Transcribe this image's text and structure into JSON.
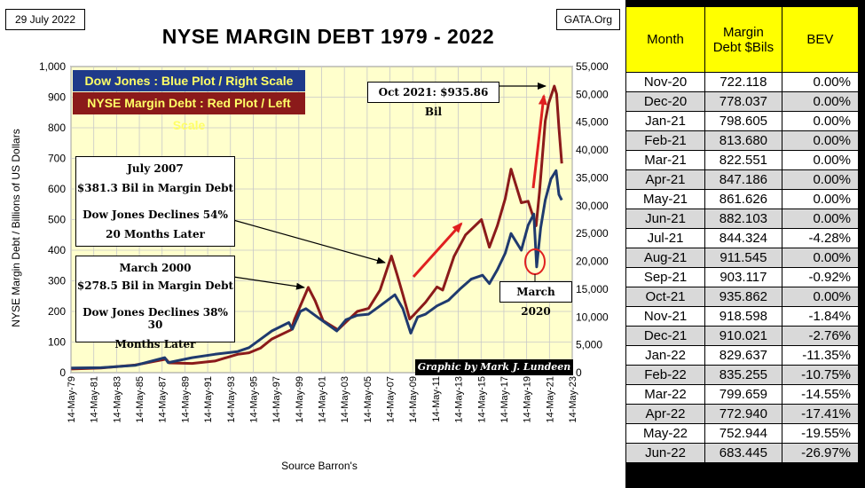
{
  "header": {
    "date": "29 July 2022",
    "site": "GATA.Org",
    "title": "NYSE MARGIN DEBT 1979 - 2022"
  },
  "legend": {
    "blue": "Dow Jones : Blue Plot / Right Scale",
    "red": "NYSE Margin Debt : Red Plot / Left Scale"
  },
  "annotations": {
    "july2007": [
      "July 2007",
      "$381.3  Bil in Margin Debt",
      "Dow Jones Declines 54%",
      "20 Months Later"
    ],
    "march2000": [
      "March  2000",
      "$278.5  Bil in Margin Debt",
      "Dow Jones Declines 38% 30",
      "Months Later"
    ],
    "peak": "Oct 2021:  $935.86  Bil",
    "march2020": "March  2020"
  },
  "credit": "Graphic by Mark J. Lundeen",
  "source": "Source Barron's",
  "colors": {
    "dow": "#1f3a6e",
    "margin": "#8b1a1a",
    "plot_bg": "#ffffcc",
    "header_bg": "#ffff00",
    "arrow": "#e02020"
  },
  "chart_data": {
    "type": "line",
    "title": "NYSE MARGIN DEBT 1979 - 2022",
    "ylabel_left": "NYSE Margin Debt  /  Billions of US Dollars",
    "ylim_left": [
      0,
      1000
    ],
    "ylim_right": [
      0,
      55000
    ],
    "yticks_left": [
      "0",
      "100",
      "200",
      "300",
      "400",
      "500",
      "600",
      "700",
      "800",
      "900",
      "1,000"
    ],
    "yticks_right": [
      "0",
      "5,000",
      "10,000",
      "15,000",
      "20,000",
      "25,000",
      "30,000",
      "35,000",
      "40,000",
      "45,000",
      "50,000",
      "55,000"
    ],
    "xticks": [
      "14-May-79",
      "14-May-81",
      "14-May-83",
      "14-May-85",
      "14-May-87",
      "14-May-89",
      "14-May-91",
      "14-May-93",
      "14-May-95",
      "14-May-97",
      "14-May-99",
      "14-May-01",
      "14-May-03",
      "14-May-05",
      "14-May-07",
      "14-May-09",
      "14-May-11",
      "14-May-13",
      "14-May-15",
      "14-May-17",
      "14-May-19",
      "14-May-21",
      "14-May-23"
    ],
    "xlim": [
      1979.37,
      2023.37
    ],
    "grid": true,
    "series": [
      {
        "name": "NYSE Margin Debt",
        "axis": "left",
        "x": [
          1979.4,
          1982,
          1985,
          1987.7,
          1988,
          1990,
          1992,
          1994,
          1995,
          1996,
          1997,
          1998.7,
          1999,
          2000.2,
          2000.8,
          2001.5,
          2002.8,
          2003.5,
          2004.5,
          2005.5,
          2006.5,
          2007.5,
          2008,
          2008.5,
          2009.1,
          2009.5,
          2010.5,
          2011.5,
          2012,
          2013,
          2014,
          2015.4,
          2016.1,
          2016.8,
          2017.5,
          2018,
          2018.9,
          2019.5,
          2020.2,
          2020.5,
          2021,
          2021.3,
          2021.8,
          2022,
          2022.2,
          2022.45
        ],
        "y": [
          12,
          15,
          25,
          44,
          32,
          30,
          38,
          60,
          65,
          80,
          110,
          140,
          175,
          278.5,
          235,
          170,
          140,
          165,
          200,
          210,
          270,
          381.3,
          320,
          255,
          175,
          190,
          230,
          280,
          270,
          380,
          450,
          500,
          410,
          480,
          570,
          665,
          555,
          560,
          480,
          590,
          822,
          880,
          935.86,
          910,
          800,
          683.4
        ]
      },
      {
        "name": "Dow Jones",
        "axis": "right",
        "x": [
          1979.4,
          1982,
          1985,
          1987.6,
          1987.9,
          1990,
          1992,
          1994,
          1995,
          1996,
          1997,
          1998.5,
          1998.8,
          1999.5,
          2000,
          2001,
          2002.7,
          2003.5,
          2004.5,
          2005.5,
          2006.5,
          2007.8,
          2008.5,
          2009.2,
          2009.8,
          2010.5,
          2011.5,
          2012.5,
          2013.5,
          2014.5,
          2015.5,
          2016.1,
          2016.8,
          2017.5,
          2018,
          2018.9,
          2019.5,
          2020.0,
          2020.25,
          2020.6,
          2021,
          2021.5,
          2021.95,
          2022.2,
          2022.45
        ],
        "y": [
          850,
          900,
          1300,
          2700,
          1800,
          2700,
          3300,
          3800,
          4500,
          6000,
          7500,
          9000,
          7800,
          11000,
          11500,
          10000,
          7500,
          9500,
          10300,
          10500,
          12000,
          14000,
          11500,
          7100,
          10000,
          10500,
          12000,
          13000,
          15000,
          16800,
          17500,
          16000,
          18500,
          21500,
          25000,
          22000,
          26500,
          28500,
          19000,
          26000,
          31000,
          34800,
          36300,
          32000,
          31000
        ]
      }
    ]
  }
}
